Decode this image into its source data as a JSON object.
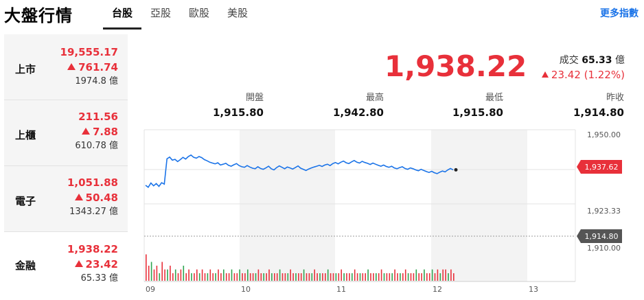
{
  "header": {
    "title": "大盤行情",
    "tabs": [
      {
        "label": "台股",
        "active": true
      },
      {
        "label": "亞股",
        "active": false
      },
      {
        "label": "歐股",
        "active": false
      },
      {
        "label": "美股",
        "active": false
      }
    ],
    "more_link": "更多指數"
  },
  "sidebar": {
    "items": [
      {
        "name": "上市",
        "price": "19,555.17",
        "change": "761.74",
        "volume": "1974.8 億"
      },
      {
        "name": "上櫃",
        "price": "211.56",
        "change": "7.88",
        "volume": "610.78 億"
      },
      {
        "name": "電子",
        "price": "1,051.88",
        "change": "50.48",
        "volume": "1343.27 億"
      },
      {
        "name": "金融",
        "price": "1,938.22",
        "change": "23.42",
        "volume": "65.33 億"
      }
    ]
  },
  "quote": {
    "price": "1,938.22",
    "turnover_label": "成交",
    "turnover_value": "65.33",
    "turnover_unit": "億",
    "change": "23.42 (1.22%)",
    "up_color": "#e8303a"
  },
  "stats": {
    "open_label": "開盤",
    "open_value": "1,915.80",
    "high_label": "最高",
    "high_value": "1,942.80",
    "low_label": "最低",
    "low_value": "1,915.80",
    "prev_label": "昨收",
    "prev_value": "1,914.80"
  },
  "chart_data": {
    "type": "line",
    "x_ticks": [
      "09",
      "10",
      "11",
      "12",
      "13"
    ],
    "y_ticks": [
      "1,950.00",
      "1,923.33",
      "1,910.00"
    ],
    "ylim": [
      1910,
      1950
    ],
    "current_label": "1,937.62",
    "prev_close_label": "1,914.80",
    "current_value": 1937.62,
    "prev_close_value": 1914.8,
    "line_color": "#1a73e8",
    "series": [
      {
        "values": [
          1932.2,
          1931.5,
          1933.0,
          1932.0,
          1932.8,
          1931.8,
          1933.1,
          1932.6,
          1941.5,
          1942.1,
          1941.0,
          1941.3,
          1940.5,
          1941.2,
          1942.0,
          1941.4,
          1942.3,
          1942.8,
          1942.0,
          1941.7,
          1942.3,
          1941.9,
          1941.2,
          1940.8,
          1940.3,
          1940.0,
          1939.7,
          1940.1,
          1939.3,
          1939.6,
          1939.9,
          1939.2,
          1938.9,
          1939.4,
          1939.8,
          1939.1,
          1938.7,
          1938.5,
          1939.1,
          1938.6,
          1938.2,
          1938.0,
          1938.7,
          1938.1,
          1937.8,
          1938.3,
          1938.9,
          1938.0,
          1937.6,
          1938.4,
          1939.0,
          1938.5,
          1938.0,
          1938.6,
          1938.3,
          1937.9,
          1938.4,
          1939.0,
          1938.2,
          1937.8,
          1937.4,
          1937.9,
          1938.3,
          1938.6,
          1938.9,
          1939.2,
          1938.8,
          1939.3,
          1939.6,
          1939.1,
          1939.8,
          1940.2,
          1939.7,
          1940.3,
          1940.7,
          1940.1,
          1939.8,
          1940.4,
          1940.9,
          1940.3,
          1940.0,
          1940.6,
          1940.2,
          1939.9,
          1939.5,
          1940.0,
          1939.6,
          1939.2,
          1938.9,
          1939.3,
          1938.8,
          1938.5,
          1938.9,
          1938.3,
          1938.0,
          1938.4,
          1938.7,
          1938.1,
          1937.8,
          1938.3,
          1938.0,
          1937.6,
          1937.3,
          1937.8,
          1937.4,
          1937.0,
          1936.7,
          1937.1,
          1936.6,
          1936.3,
          1936.8,
          1937.2,
          1936.9,
          1937.6,
          1938.1,
          1937.62
        ]
      }
    ],
    "volume": [
      7,
      4,
      5,
      3,
      4,
      2,
      5,
      3,
      3,
      4,
      2,
      3,
      2,
      3,
      4,
      2,
      3,
      2,
      2,
      3,
      2,
      3,
      2,
      2,
      3,
      2,
      2,
      3,
      2,
      3,
      2,
      2,
      3,
      2,
      2,
      3,
      2,
      2,
      3,
      2,
      2,
      2,
      3,
      2,
      2,
      2,
      3,
      2,
      2,
      2,
      3,
      2,
      2,
      2,
      3,
      2,
      2,
      2,
      2,
      3,
      2,
      2,
      2,
      3,
      2,
      2,
      2,
      2,
      3,
      2,
      2,
      2,
      2,
      3,
      2,
      2,
      2,
      2,
      3,
      2,
      2,
      2,
      2,
      3,
      2,
      2,
      2,
      2,
      3,
      2,
      2,
      2,
      2,
      3,
      2,
      2,
      2,
      3,
      2,
      2,
      2,
      3,
      2,
      2,
      3,
      2,
      2,
      3,
      2,
      3,
      2,
      3,
      3,
      2,
      3,
      2
    ],
    "volume_colors": [
      "#e8303a",
      "#2ea44f"
    ]
  }
}
